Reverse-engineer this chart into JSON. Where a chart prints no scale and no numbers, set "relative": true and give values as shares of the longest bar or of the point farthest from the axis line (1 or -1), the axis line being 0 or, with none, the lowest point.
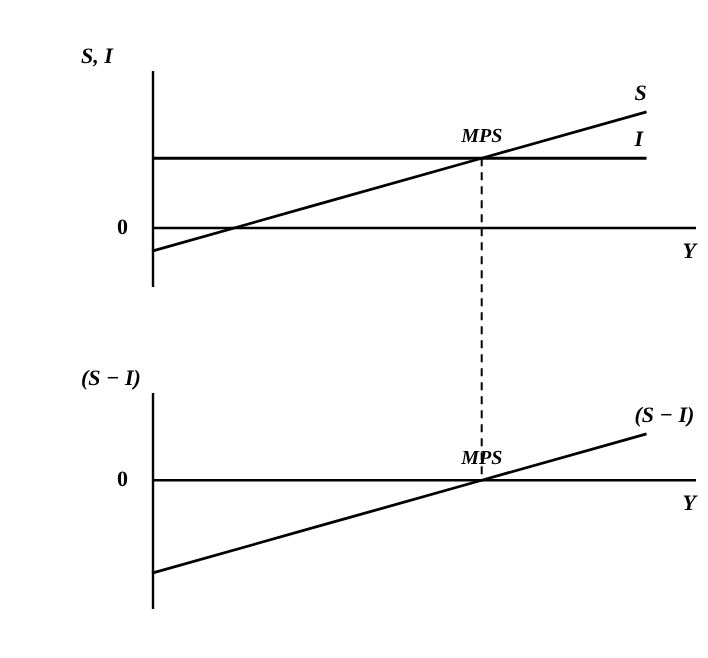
{
  "chart_data": [
    {
      "type": "line",
      "relative": true,
      "ylabel": "S, I",
      "xlabel": "Y",
      "legend": false,
      "categories": [
        null,
        null,
        null,
        null
      ],
      "series": [
        {
          "name": "S",
          "color": "#000000",
          "values": [
            -0.2,
            0.2,
            0.6,
            1
          ]
        },
        {
          "name": "I",
          "color": "#000000",
          "values": [
            0.6,
            0.6,
            0.6,
            0.6
          ]
        }
      ],
      "annotations": [
        "0",
        "MPS"
      ]
    },
    {
      "type": "line",
      "relative": true,
      "ylabel": "(S − I)",
      "xlabel": "Y",
      "legend": false,
      "categories": [
        null,
        null,
        null,
        null
      ],
      "series": [
        {
          "name": "(S − I)",
          "color": "#000000",
          "values": [
            -1,
            -0.5,
            0,
            0.5
          ]
        }
      ],
      "annotations": [
        "0",
        "MPS"
      ]
    }
  ]
}
